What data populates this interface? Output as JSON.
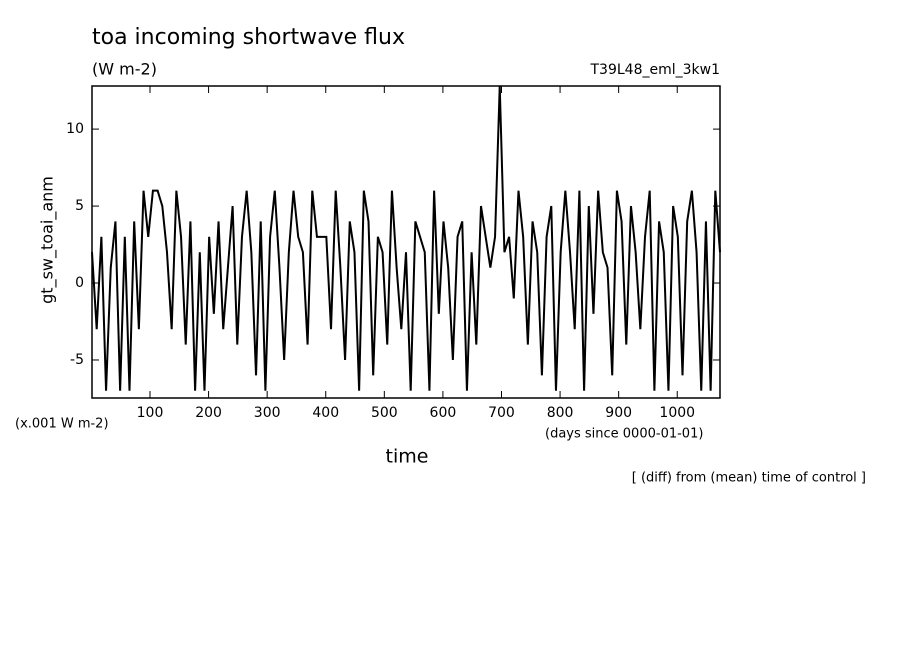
{
  "chart_data": {
    "type": "line",
    "title": "toa incoming shortwave flux",
    "subtitle": "(W m-2)",
    "run_label": "T39L48_eml_3kw1",
    "y_label": "gt_sw_toai_anm",
    "y_unit": "(x.001 W m-2)",
    "x_label": "time",
    "x_unit": "(days since 0000-01-01)",
    "note": "[ (diff) from (mean) time of control ]",
    "xlim": [
      1,
      1073
    ],
    "ylim": [
      -7.47,
      12.8
    ],
    "xticks": [
      100,
      200,
      300,
      400,
      500,
      600,
      700,
      800,
      900,
      1000
    ],
    "yticks": [
      -5,
      0,
      5,
      10
    ],
    "x": [
      1,
      9,
      17,
      25,
      33,
      41,
      49,
      57,
      65,
      73,
      81,
      89,
      97,
      105,
      113,
      121,
      129,
      137,
      145,
      153,
      161,
      169,
      177,
      185,
      193,
      201,
      209,
      217,
      225,
      233,
      241,
      249,
      257,
      265,
      273,
      281,
      289,
      297,
      305,
      313,
      321,
      329,
      337,
      345,
      353,
      361,
      369,
      377,
      385,
      393,
      401,
      409,
      417,
      425,
      433,
      441,
      449,
      457,
      465,
      473,
      481,
      489,
      497,
      505,
      513,
      521,
      529,
      537,
      545,
      553,
      561,
      569,
      577,
      585,
      593,
      601,
      609,
      617,
      625,
      633,
      641,
      649,
      657,
      665,
      673,
      681,
      689,
      697,
      705,
      713,
      721,
      729,
      737,
      745,
      753,
      761,
      769,
      777,
      785,
      793,
      801,
      809,
      817,
      825,
      833,
      841,
      849,
      857,
      865,
      873,
      881,
      889,
      897,
      905,
      913,
      921,
      929,
      937,
      945,
      953,
      961,
      969,
      977,
      985,
      993,
      1001,
      1009,
      1017,
      1025,
      1033,
      1041,
      1049,
      1057,
      1065,
      1073
    ],
    "series": [
      {
        "color": "#000000",
        "values": [
          2,
          -3,
          3,
          -7,
          1,
          4,
          -7,
          3,
          -7,
          4,
          -3,
          6,
          3,
          6,
          6,
          5,
          2,
          -3,
          6,
          3,
          -4,
          4,
          -7,
          2,
          -7,
          3,
          -2,
          4,
          -3,
          1,
          5,
          -4,
          3,
          6,
          2,
          -6,
          4,
          -7,
          3,
          6,
          1,
          -5,
          2,
          6,
          3,
          2,
          -4,
          6,
          3,
          3,
          3,
          -3,
          6,
          1,
          -5,
          4,
          2,
          -7,
          6,
          4,
          -6,
          3,
          2,
          -4,
          6,
          1,
          -3,
          2,
          -7,
          4,
          3,
          2,
          -7,
          6,
          -2,
          4,
          1,
          -5,
          3,
          4,
          -7,
          2,
          -4,
          5,
          3,
          1,
          3,
          12.8,
          2,
          3,
          -1,
          6,
          3,
          -4,
          4,
          2,
          -6,
          3,
          5,
          -7,
          2,
          6,
          2,
          -3,
          6,
          -7,
          5,
          -2,
          6,
          2,
          1,
          -6,
          6,
          4,
          -4,
          5,
          2,
          -3,
          3,
          6,
          -7,
          4,
          2,
          -7,
          5,
          3,
          -6,
          4,
          6,
          2,
          -7,
          4,
          -7,
          6,
          2
        ]
      }
    ]
  }
}
